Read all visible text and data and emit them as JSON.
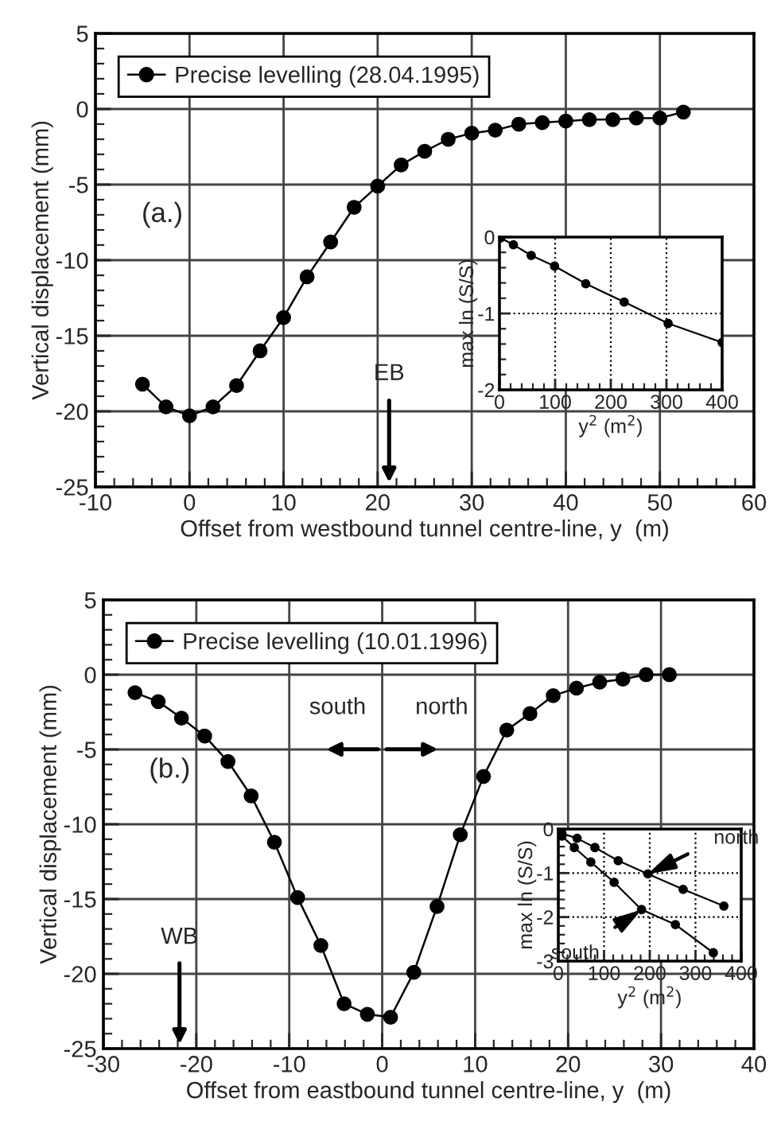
{
  "chart_data": [
    {
      "type": "line",
      "xlabel": "Offset from westbound tunnel centre-line, y  (m)",
      "ylabel": "Vertical displacement (mm)",
      "xlim": [
        -10,
        60
      ],
      "ylim": [
        -25,
        5
      ],
      "xticks": [
        -10,
        0,
        10,
        20,
        30,
        40,
        50,
        60
      ],
      "yticks": [
        -25,
        -20,
        -15,
        -10,
        -5,
        0,
        5
      ],
      "grid": true,
      "legend": "top left",
      "marker": "circle",
      "line_style": "solid",
      "series": [
        {
          "name": "Precise levelling (28.04.1995)",
          "color": "#000000",
          "x": [
            -5,
            -2.5,
            0,
            2.5,
            5,
            7.5,
            10,
            12.5,
            15,
            17.5,
            20,
            22.5,
            25,
            27.5,
            30,
            32.5,
            35,
            37.5,
            40,
            42.5,
            45,
            47.5,
            50,
            52.5
          ],
          "values": [
            -18.2,
            -19.7,
            -20.3,
            -19.7,
            -18.3,
            -16.0,
            -13.8,
            -11.1,
            -8.8,
            -6.5,
            -5.1,
            -3.7,
            -2.8,
            -2.0,
            -1.6,
            -1.4,
            -1.0,
            -0.9,
            -0.8,
            -0.7,
            -0.7,
            -0.6,
            -0.6,
            -0.2
          ]
        }
      ],
      "annotations": [
        "(a.)",
        "EB"
      ]
    },
    {
      "type": "line",
      "xlabel": "y$^{2}$ (m$^{2}$)",
      "ylabel": "max ln (S/S)",
      "xlim": [
        0,
        400
      ],
      "ylim": [
        -2,
        0
      ],
      "xticks": [
        0,
        100,
        200,
        300,
        400
      ],
      "yticks": [
        -2,
        -1,
        0
      ],
      "grid": true,
      "marker": "circle",
      "line_style": "solid",
      "series": [
        {
          "color": "#000000",
          "x": [
            2,
            25,
            57,
            99,
            155,
            224,
            303,
            400
          ],
          "values": [
            -0.01,
            -0.1,
            -0.24,
            -0.38,
            -0.61,
            -0.85,
            -1.13,
            -1.38
          ]
        }
      ]
    },
    {
      "type": "line",
      "xlabel": "Offset from eastbound tunnel centre-line, y  (m)",
      "ylabel": "Vertical displacement (mm)",
      "xlim": [
        -30,
        40
      ],
      "ylim": [
        -25,
        5
      ],
      "xticks": [
        -30,
        -20,
        -10,
        0,
        10,
        20,
        30,
        40
      ],
      "yticks": [
        -25,
        -20,
        -15,
        -10,
        -5,
        0,
        5
      ],
      "grid": true,
      "legend": "top left",
      "marker": "circle",
      "line_style": "solid",
      "series": [
        {
          "name": "Precise levelling (10.01.1996)",
          "color": "#000000",
          "x": [
            -26.6,
            -24.1,
            -21.6,
            -19.1,
            -16.6,
            -14.1,
            -11.6,
            -9.1,
            -6.6,
            -4.1,
            -1.6,
            0.9,
            3.4,
            5.9,
            8.4,
            10.9,
            13.4,
            15.9,
            18.4,
            20.9,
            23.4,
            25.9,
            28.4,
            30.9
          ],
          "values": [
            -1.2,
            -1.8,
            -2.9,
            -4.1,
            -5.8,
            -8.1,
            -11.2,
            -14.9,
            -18.1,
            -22.0,
            -22.7,
            -22.9,
            -19.9,
            -15.5,
            -10.7,
            -6.8,
            -3.7,
            -2.6,
            -1.4,
            -0.9,
            -0.5,
            -0.3,
            0,
            0
          ]
        }
      ],
      "annotations": [
        "(b.)",
        "WB",
        "south",
        "north"
      ]
    },
    {
      "type": "line",
      "xlabel": "y$^{2}$ (m$^{2}$)",
      "ylabel": "max ln (S/S)",
      "xlim": [
        0,
        400
      ],
      "ylim": [
        -3,
        0
      ],
      "xticks": [
        0,
        100,
        200,
        300,
        400
      ],
      "yticks": [
        -3,
        -2,
        -1,
        0
      ],
      "grid": true,
      "marker": "circle",
      "line_style": "solid",
      "series": [
        {
          "name": "north",
          "color": "#000000",
          "x": [
            8,
            41,
            80,
            131,
            196,
            273,
            362
          ],
          "values": [
            -0.1,
            -0.21,
            -0.42,
            -0.72,
            -1.02,
            -1.37,
            -1.75
          ]
        },
        {
          "name": "south",
          "color": "#000000",
          "x": [
            8,
            35,
            71,
            122,
            182,
            256,
            339
          ],
          "values": [
            -0.16,
            -0.42,
            -0.75,
            -1.21,
            -1.83,
            -2.17,
            -2.81
          ]
        }
      ]
    }
  ]
}
